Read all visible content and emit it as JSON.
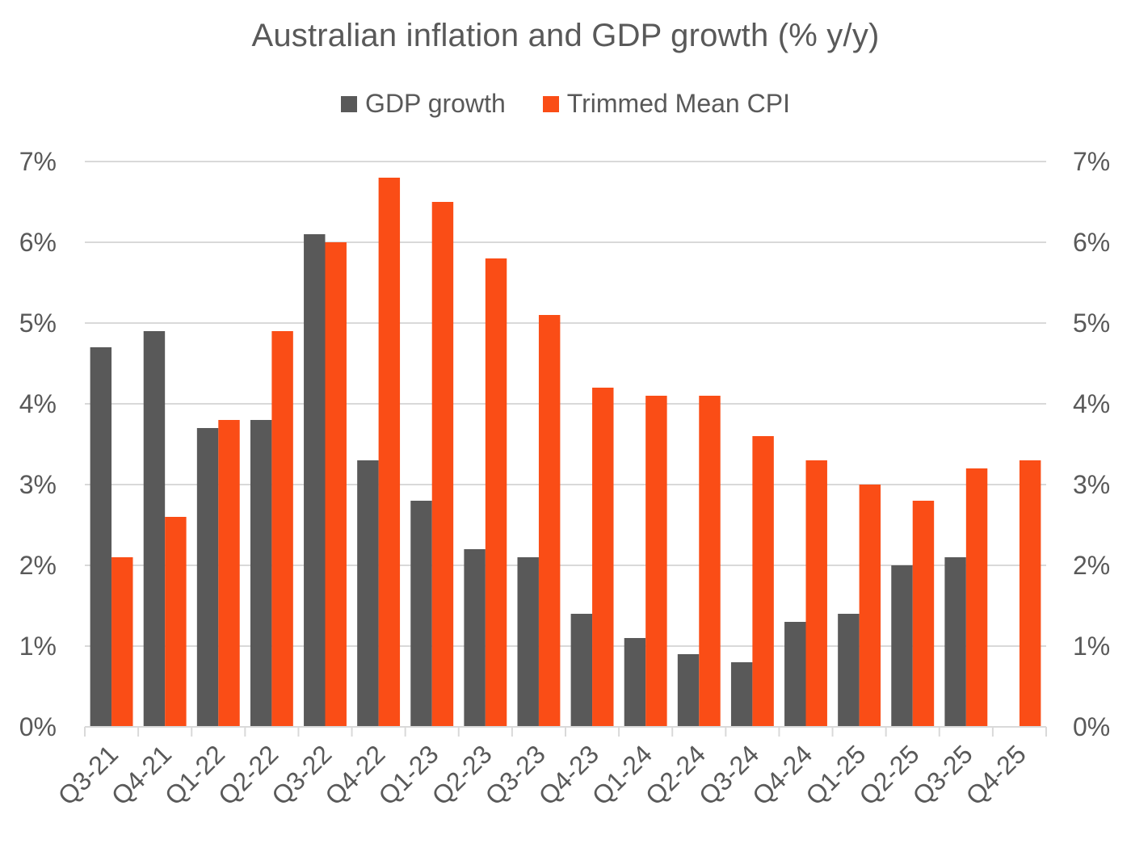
{
  "chart_data": {
    "type": "bar",
    "title": "Australian inflation and GDP growth (% y/y)",
    "xlabel": "",
    "ylabel": "",
    "categories": [
      "Q3-21",
      "Q4-21",
      "Q1-22",
      "Q2-22",
      "Q3-22",
      "Q4-22",
      "Q1-23",
      "Q2-23",
      "Q3-23",
      "Q4-23",
      "Q1-24",
      "Q2-24",
      "Q3-24",
      "Q4-24",
      "Q1-25",
      "Q2-25",
      "Q3-25",
      "Q4-25"
    ],
    "series": [
      {
        "name": "GDP growth",
        "color": "#595959",
        "values": [
          4.7,
          4.9,
          3.7,
          3.8,
          6.1,
          3.3,
          2.8,
          2.2,
          2.1,
          1.4,
          1.1,
          0.9,
          0.8,
          1.3,
          1.4,
          2.0,
          2.1,
          null
        ]
      },
      {
        "name": "Trimmed Mean CPI",
        "color": "#FA4D16",
        "values": [
          2.1,
          2.6,
          3.8,
          4.9,
          6.0,
          6.8,
          6.5,
          5.8,
          5.1,
          4.2,
          4.1,
          4.1,
          3.6,
          3.3,
          3.0,
          2.8,
          3.2,
          3.3
        ]
      }
    ],
    "ylim": [
      0,
      7
    ],
    "yticks": [
      0,
      1,
      2,
      3,
      4,
      5,
      6,
      7
    ],
    "ytick_labels": [
      "0%",
      "1%",
      "2%",
      "3%",
      "4%",
      "5%",
      "6%",
      "7%"
    ],
    "secondary_y_axis": true,
    "grid": true,
    "legend_position": "top-center"
  }
}
